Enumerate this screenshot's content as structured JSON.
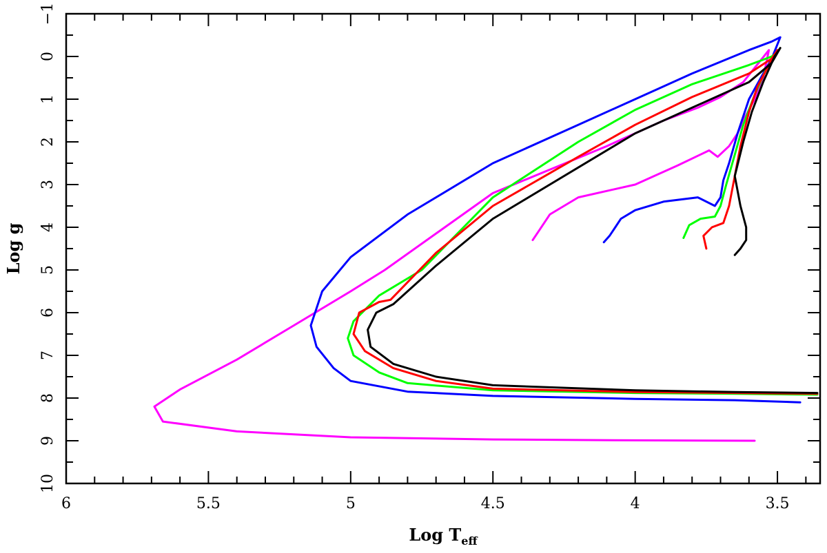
{
  "chart_data": {
    "type": "line",
    "title": "",
    "xlabel": "Log T",
    "xlabel_subscript": "eff",
    "ylabel": "Log g",
    "xlim": [
      6,
      3.35
    ],
    "ylim": [
      10,
      -1
    ],
    "x_reversed": true,
    "y_reversed": true,
    "grid": false,
    "legend": "none",
    "x_ticks": [
      {
        "value": 6,
        "label": "6"
      },
      {
        "value": 5.5,
        "label": "5.5"
      },
      {
        "value": 5,
        "label": "5"
      },
      {
        "value": 4.5,
        "label": "4.5"
      },
      {
        "value": 4,
        "label": "4"
      },
      {
        "value": 3.5,
        "label": "3.5"
      }
    ],
    "y_ticks": [
      {
        "value": -1,
        "label": "−1"
      },
      {
        "value": 0,
        "label": "0"
      },
      {
        "value": 1,
        "label": "1"
      },
      {
        "value": 2,
        "label": "2"
      },
      {
        "value": 3,
        "label": "3"
      },
      {
        "value": 4,
        "label": "4"
      },
      {
        "value": 5,
        "label": "5"
      },
      {
        "value": 6,
        "label": "6"
      },
      {
        "value": 7,
        "label": "7"
      },
      {
        "value": 8,
        "label": "8"
      },
      {
        "value": 9,
        "label": "9"
      },
      {
        "value": 10,
        "label": "10"
      }
    ],
    "series": [
      {
        "color": "#ff00ff",
        "points": [
          [
            4.36,
            4.3
          ],
          [
            4.34,
            4.1
          ],
          [
            4.3,
            3.7
          ],
          [
            4.2,
            3.3
          ],
          [
            4.0,
            3.0
          ],
          [
            3.85,
            2.55
          ],
          [
            3.74,
            2.2
          ],
          [
            3.71,
            2.35
          ],
          [
            3.67,
            2.1
          ],
          [
            3.64,
            1.8
          ],
          [
            3.62,
            1.5
          ],
          [
            3.58,
            1.0
          ],
          [
            3.55,
            0.5
          ],
          [
            3.53,
            -0.15
          ],
          [
            3.56,
            0.1
          ],
          [
            3.62,
            0.6
          ],
          [
            3.7,
            0.95
          ],
          [
            3.78,
            1.2
          ],
          [
            3.9,
            1.5
          ],
          [
            4.1,
            2.1
          ],
          [
            4.5,
            3.2
          ],
          [
            4.88,
            5.0
          ],
          [
            5.0,
            5.5
          ],
          [
            5.2,
            6.3
          ],
          [
            5.4,
            7.1
          ],
          [
            5.6,
            7.8
          ],
          [
            5.69,
            8.2
          ],
          [
            5.66,
            8.55
          ],
          [
            5.4,
            8.78
          ],
          [
            5.0,
            8.92
          ],
          [
            4.5,
            8.97
          ],
          [
            4.0,
            8.99
          ],
          [
            3.58,
            9.0
          ]
        ]
      },
      {
        "color": "#0000ff",
        "points": [
          [
            4.11,
            4.35
          ],
          [
            4.09,
            4.2
          ],
          [
            4.07,
            4.0
          ],
          [
            4.05,
            3.8
          ],
          [
            4.0,
            3.6
          ],
          [
            3.9,
            3.4
          ],
          [
            3.78,
            3.3
          ],
          [
            3.72,
            3.5
          ],
          [
            3.7,
            3.3
          ],
          [
            3.69,
            2.9
          ],
          [
            3.67,
            2.5
          ],
          [
            3.64,
            1.8
          ],
          [
            3.6,
            1.0
          ],
          [
            3.55,
            0.4
          ],
          [
            3.52,
            0.05
          ],
          [
            3.49,
            -0.45
          ],
          [
            3.52,
            -0.35
          ],
          [
            3.6,
            -0.15
          ],
          [
            3.8,
            0.4
          ],
          [
            4.0,
            1.0
          ],
          [
            4.2,
            1.6
          ],
          [
            4.5,
            2.5
          ],
          [
            4.8,
            3.7
          ],
          [
            5.0,
            4.7
          ],
          [
            5.1,
            5.5
          ],
          [
            5.14,
            6.3
          ],
          [
            5.12,
            6.8
          ],
          [
            5.06,
            7.3
          ],
          [
            5.0,
            7.6
          ],
          [
            4.8,
            7.85
          ],
          [
            4.5,
            7.95
          ],
          [
            4.0,
            8.02
          ],
          [
            3.65,
            8.05
          ],
          [
            3.42,
            8.1
          ]
        ]
      },
      {
        "color": "#00ff00",
        "points": [
          [
            3.83,
            4.25
          ],
          [
            3.81,
            3.95
          ],
          [
            3.77,
            3.8
          ],
          [
            3.72,
            3.75
          ],
          [
            3.7,
            3.5
          ],
          [
            3.68,
            3.0
          ],
          [
            3.65,
            2.3
          ],
          [
            3.62,
            1.6
          ],
          [
            3.58,
            0.9
          ],
          [
            3.54,
            0.3
          ],
          [
            3.5,
            -0.1
          ],
          [
            3.52,
            0.0
          ],
          [
            3.6,
            0.2
          ],
          [
            3.8,
            0.65
          ],
          [
            4.0,
            1.25
          ],
          [
            4.2,
            2.0
          ],
          [
            4.5,
            3.3
          ],
          [
            4.75,
            5.0
          ],
          [
            4.9,
            5.6
          ],
          [
            4.99,
            6.2
          ],
          [
            5.01,
            6.6
          ],
          [
            4.99,
            7.0
          ],
          [
            4.9,
            7.4
          ],
          [
            4.8,
            7.65
          ],
          [
            4.5,
            7.82
          ],
          [
            4.0,
            7.88
          ],
          [
            3.65,
            7.9
          ],
          [
            3.36,
            7.92
          ]
        ]
      },
      {
        "color": "#ff0000",
        "points": [
          [
            3.75,
            4.5
          ],
          [
            3.76,
            4.2
          ],
          [
            3.73,
            4.0
          ],
          [
            3.69,
            3.9
          ],
          [
            3.67,
            3.5
          ],
          [
            3.65,
            2.8
          ],
          [
            3.63,
            2.1
          ],
          [
            3.6,
            1.3
          ],
          [
            3.57,
            0.7
          ],
          [
            3.53,
            0.2
          ],
          [
            3.5,
            -0.15
          ],
          [
            3.52,
            0.05
          ],
          [
            3.6,
            0.4
          ],
          [
            3.8,
            0.95
          ],
          [
            4.0,
            1.6
          ],
          [
            4.2,
            2.35
          ],
          [
            4.5,
            3.5
          ],
          [
            4.7,
            4.6
          ],
          [
            4.86,
            5.7
          ],
          [
            4.9,
            5.75
          ],
          [
            4.97,
            6.0
          ],
          [
            4.99,
            6.5
          ],
          [
            4.95,
            6.9
          ],
          [
            4.85,
            7.3
          ],
          [
            4.7,
            7.6
          ],
          [
            4.5,
            7.78
          ],
          [
            4.0,
            7.86
          ],
          [
            3.65,
            7.88
          ],
          [
            3.36,
            7.9
          ]
        ]
      },
      {
        "color": "#000000",
        "points": [
          [
            3.65,
            4.65
          ],
          [
            3.63,
            4.5
          ],
          [
            3.61,
            4.3
          ],
          [
            3.61,
            4.0
          ],
          [
            3.63,
            3.5
          ],
          [
            3.65,
            2.8
          ],
          [
            3.62,
            2.0
          ],
          [
            3.59,
            1.3
          ],
          [
            3.55,
            0.6
          ],
          [
            3.51,
            0.0
          ],
          [
            3.49,
            -0.2
          ],
          [
            3.52,
            0.15
          ],
          [
            3.6,
            0.6
          ],
          [
            3.8,
            1.2
          ],
          [
            4.0,
            1.8
          ],
          [
            4.2,
            2.6
          ],
          [
            4.5,
            3.8
          ],
          [
            4.7,
            4.9
          ],
          [
            4.85,
            5.8
          ],
          [
            4.91,
            6.0
          ],
          [
            4.94,
            6.4
          ],
          [
            4.93,
            6.8
          ],
          [
            4.85,
            7.2
          ],
          [
            4.7,
            7.5
          ],
          [
            4.5,
            7.7
          ],
          [
            4.0,
            7.82
          ],
          [
            3.65,
            7.86
          ],
          [
            3.36,
            7.88
          ]
        ]
      }
    ]
  }
}
